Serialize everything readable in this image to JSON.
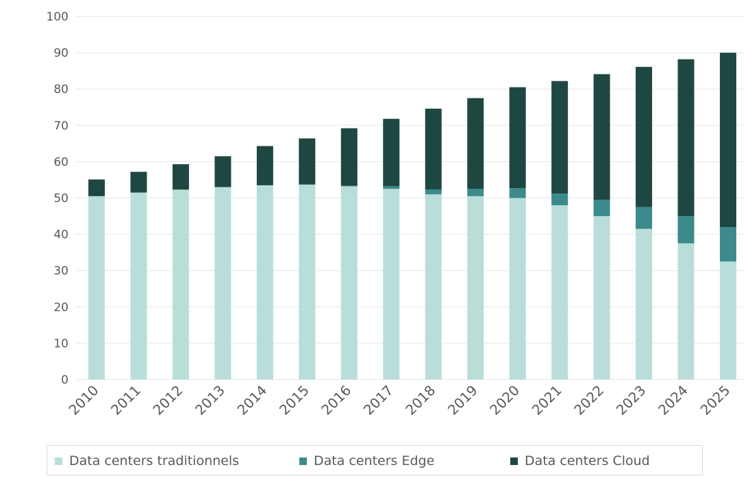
{
  "chart_data": {
    "type": "bar",
    "stacked": true,
    "categories": [
      "2010",
      "2011",
      "2012",
      "2013",
      "2014",
      "2015",
      "2016",
      "2017",
      "2018",
      "2019",
      "2020",
      "2021",
      "2022",
      "2023",
      "2024",
      "2025"
    ],
    "series": [
      {
        "name": "Data centers traditionnels",
        "color": "#b9ded9",
        "values": [
          50.5,
          51.5,
          52.3,
          53.0,
          53.5,
          53.7,
          53.2,
          52.5,
          51.0,
          50.5,
          50.0,
          48.0,
          45.0,
          41.5,
          37.5,
          32.5
        ]
      },
      {
        "name": "Data centers Edge",
        "color": "#3c8a8b",
        "values": [
          0,
          0,
          0,
          0,
          0,
          0,
          0.2,
          0.8,
          1.3,
          2.0,
          2.7,
          3.2,
          4.5,
          6.0,
          7.5,
          9.5
        ]
      },
      {
        "name": "Data centers Cloud",
        "color": "#1e4742",
        "values": [
          4.6,
          5.7,
          7.0,
          8.5,
          10.8,
          12.7,
          15.8,
          18.5,
          22.3,
          25.0,
          27.8,
          31.0,
          34.6,
          38.6,
          43.2,
          48.0
        ]
      }
    ],
    "ylim": [
      0,
      100
    ],
    "yticks": [
      0,
      10,
      20,
      30,
      40,
      50,
      60,
      70,
      80,
      90,
      100
    ],
    "grid": true,
    "legend_position": "bottom"
  }
}
